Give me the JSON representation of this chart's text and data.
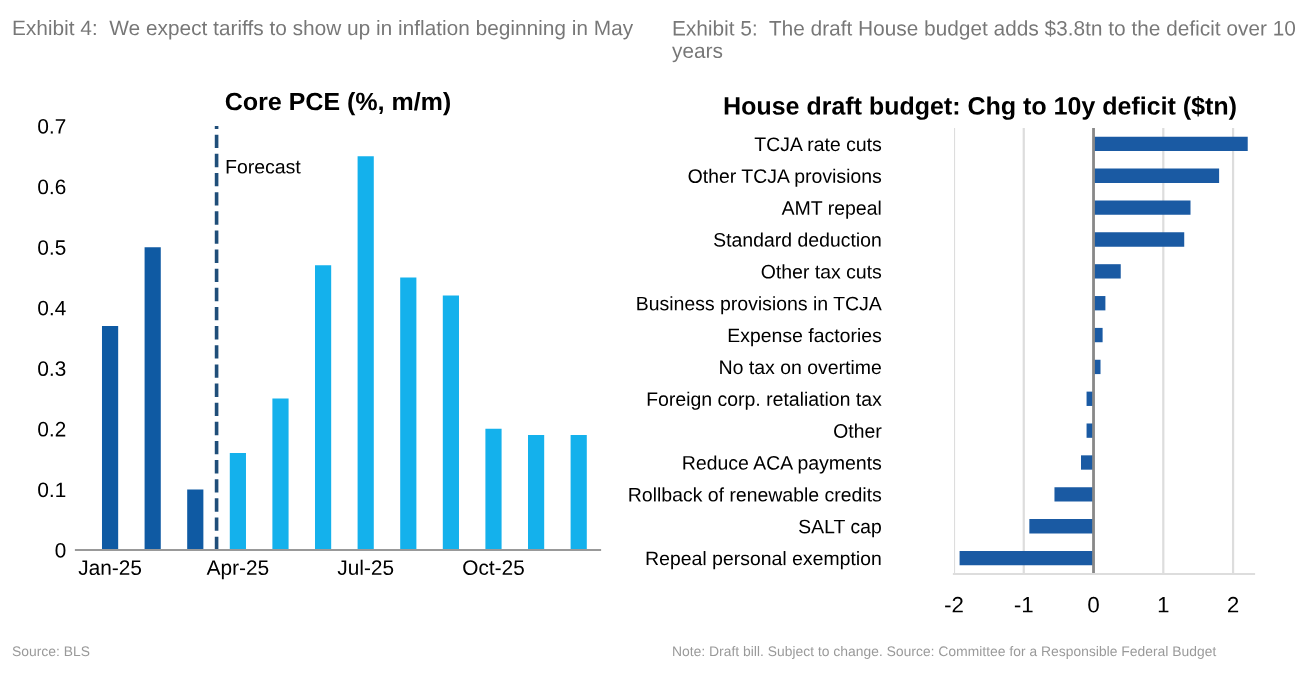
{
  "chart_data": [
    {
      "type": "bar",
      "title": "Exhibit 4:  We expect tariffs to show up in inflation beginning in May",
      "subtitle": "Core PCE (%, m/m)",
      "categories": [
        "Jan-25",
        null,
        null,
        "Apr-25",
        null,
        null,
        "Jul-25",
        null,
        null,
        "Oct-25",
        null,
        null
      ],
      "values": [
        0.37,
        0.5,
        0.1,
        0.16,
        0.25,
        0.47,
        0.65,
        0.45,
        0.42,
        0.2,
        0.19,
        0.19
      ],
      "colors": [
        "#0f5aa3",
        "#0f5aa3",
        "#0f5aa3",
        "#14b1ec",
        "#14b1ec",
        "#14b1ec",
        "#14b1ec",
        "#14b1ec",
        "#14b1ec",
        "#14b1ec",
        "#14b1ec",
        "#14b1ec"
      ],
      "ylim": [
        0,
        0.7
      ],
      "yticks": [
        0,
        0.1,
        0.2,
        0.3,
        0.4,
        0.5,
        0.6,
        0.7
      ],
      "grid": false,
      "annotations": [
        "Forecast",
        "Source: BLS"
      ]
    },
    {
      "type": "bar",
      "orientation": "horizontal",
      "title": "Exhibit 5:  The draft House budget adds $3.8tn to the deficit over 10 years",
      "subtitle": "House draft budget: Chg to 10y deficit ($tn)",
      "categories": [
        "TCJA rate cuts",
        "Other TCJA provisions",
        "AMT repeal",
        "Standard deduction",
        "Other tax cuts",
        "Business provisions in TCJA",
        "Expense factories",
        "No tax on overtime",
        "Foreign corp. retaliation tax",
        "Other",
        "Reduce ACA payments",
        "Rollback of renewable credits",
        "SALT cap",
        "Repeal personal exemption"
      ],
      "values": [
        2.21,
        1.8,
        1.39,
        1.3,
        0.39,
        0.17,
        0.13,
        0.1,
        -0.1,
        -0.1,
        -0.18,
        -0.56,
        -0.92,
        -1.92
      ],
      "color": "#1a5aa3",
      "xlim": [
        -2,
        2.3
      ],
      "xticks": [
        -2,
        -1,
        0,
        1,
        2
      ],
      "grid": "x",
      "annotations": [
        "Note: Draft bill. Subject to change. Source: Committee for a Responsible Federal Budget"
      ]
    }
  ]
}
